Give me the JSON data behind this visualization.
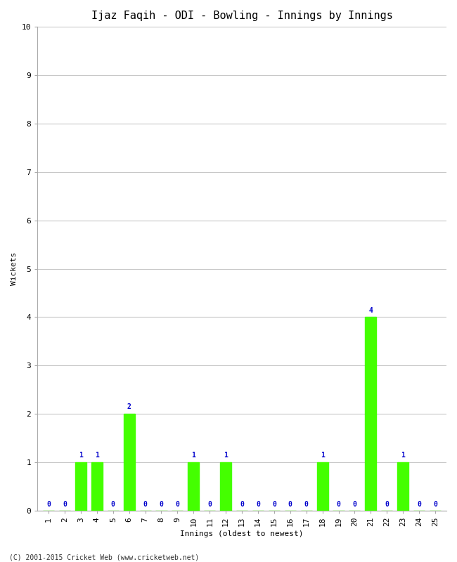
{
  "title": "Ijaz Faqih - ODI - Bowling - Innings by Innings",
  "xlabel": "Innings (oldest to newest)",
  "ylabel": "Wickets",
  "innings": [
    1,
    2,
    3,
    4,
    5,
    6,
    7,
    8,
    9,
    10,
    11,
    12,
    13,
    14,
    15,
    16,
    17,
    18,
    19,
    20,
    21,
    22,
    23,
    24,
    25
  ],
  "values": [
    0,
    0,
    1,
    1,
    0,
    2,
    0,
    0,
    0,
    1,
    0,
    1,
    0,
    0,
    0,
    0,
    0,
    1,
    0,
    0,
    4,
    0,
    1,
    0,
    0
  ],
  "bar_color": "#44ff00",
  "label_color": "#0000cc",
  "ylim": [
    0,
    10
  ],
  "yticks": [
    0,
    1,
    2,
    3,
    4,
    5,
    6,
    7,
    8,
    9,
    10
  ],
  "background_color": "#ffffff",
  "grid_color": "#c8c8c8",
  "footer": "(C) 2001-2015 Cricket Web (www.cricketweb.net)",
  "title_fontsize": 11,
  "axis_label_fontsize": 8,
  "tick_fontsize": 8,
  "annotation_fontsize": 7
}
